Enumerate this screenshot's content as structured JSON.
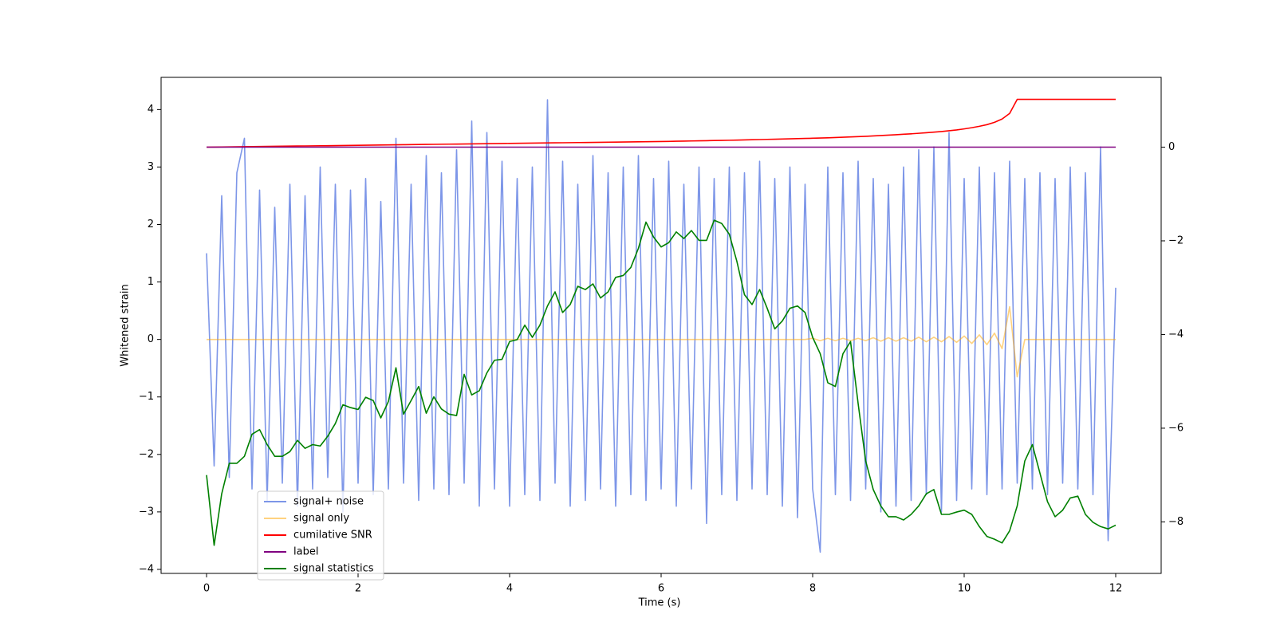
{
  "chart_data": {
    "type": "line",
    "x_label": "Time (s)",
    "y_label": "Whitened strain",
    "x": [
      0,
      0.1,
      0.2,
      0.3,
      0.4,
      0.5,
      0.6,
      0.7,
      0.8,
      0.9,
      1,
      1.1,
      1.2,
      1.3,
      1.4,
      1.5,
      1.6,
      1.7,
      1.8,
      1.9,
      2,
      2.1,
      2.2,
      2.3,
      2.4,
      2.5,
      2.6,
      2.7,
      2.8,
      2.9,
      3,
      3.1,
      3.2,
      3.3,
      3.4,
      3.5,
      3.6,
      3.7,
      3.8,
      3.9,
      4,
      4.1,
      4.2,
      4.3,
      4.4,
      4.5,
      4.6,
      4.7,
      4.8,
      4.9,
      5,
      5.1,
      5.2,
      5.3,
      5.4,
      5.5,
      5.6,
      5.7,
      5.8,
      5.9,
      6,
      6.1,
      6.2,
      6.3,
      6.4,
      6.5,
      6.6,
      6.7,
      6.8,
      6.9,
      7,
      7.1,
      7.2,
      7.3,
      7.4,
      7.5,
      7.6,
      7.7,
      7.8,
      7.9,
      8,
      8.1,
      8.2,
      8.3,
      8.4,
      8.5,
      8.6,
      8.7,
      8.8,
      8.9,
      9,
      9.1,
      9.2,
      9.3,
      9.4,
      9.5,
      9.6,
      9.7,
      9.8,
      9.9,
      10,
      10.1,
      10.2,
      10.3,
      10.4,
      10.5,
      10.6,
      10.7,
      10.8,
      10.9,
      11,
      11.1,
      11.2,
      11.3,
      11.4,
      11.5,
      11.6,
      11.7,
      11.8,
      11.9,
      12
    ],
    "xlim": [
      -0.6,
      12.6
    ],
    "ylim": [
      -4.07,
      4.56
    ],
    "y2lim": [
      -9.1,
      1.49
    ],
    "xticks": [
      0,
      2,
      4,
      6,
      8,
      10,
      12
    ],
    "yticks": [
      {
        "value": -4,
        "label": "−4"
      },
      {
        "value": -3,
        "label": "−3"
      },
      {
        "value": -2,
        "label": "−2"
      },
      {
        "value": -1,
        "label": "−1"
      },
      0,
      1,
      2,
      3,
      4
    ],
    "y2ticks": [
      {
        "value": -8,
        "label": "−8"
      },
      {
        "value": -6,
        "label": "−6"
      },
      {
        "value": -4,
        "label": "−4"
      },
      {
        "value": -2,
        "label": "−2"
      },
      0
    ],
    "legend": "lower left",
    "series": [
      {
        "name": "signal+ noise",
        "color": "#6f8be6",
        "alpha": 0.9,
        "values": [
          1.5,
          -2.2,
          2.5,
          -2.4,
          2.9,
          3.5,
          -2.6,
          2.6,
          -2.8,
          2.3,
          -2.5,
          2.7,
          -2.9,
          2.5,
          -2.6,
          3.0,
          -2.4,
          2.7,
          -3.0,
          2.6,
          -2.5,
          2.8,
          -2.7,
          2.4,
          -2.6,
          3.5,
          -2.5,
          2.7,
          -2.8,
          3.2,
          -2.6,
          2.9,
          -2.7,
          3.3,
          -2.5,
          3.8,
          -2.9,
          3.6,
          -2.6,
          3.1,
          -2.9,
          2.8,
          -2.7,
          3.0,
          -2.8,
          4.17,
          -2.5,
          3.1,
          -2.9,
          2.7,
          -2.8,
          3.2,
          -2.6,
          2.9,
          -2.9,
          3.0,
          -2.7,
          3.2,
          -2.8,
          2.8,
          -2.6,
          3.1,
          -2.9,
          2.7,
          -2.6,
          3.0,
          -3.2,
          2.8,
          -2.7,
          3.0,
          -2.8,
          2.9,
          -2.6,
          3.1,
          -2.7,
          2.8,
          -2.9,
          3.0,
          -3.1,
          2.7,
          -2.6,
          -3.7,
          3.0,
          -2.7,
          2.9,
          -2.8,
          3.1,
          -2.6,
          2.8,
          -3.0,
          2.7,
          -2.9,
          3.0,
          -2.8,
          3.3,
          -2.7,
          3.35,
          -3.0,
          3.6,
          -2.8,
          2.8,
          -2.6,
          3.0,
          -2.7,
          2.9,
          -2.6,
          3.1,
          -2.5,
          2.8,
          -2.6,
          2.9,
          -2.7,
          2.8,
          -2.5,
          3.0,
          -2.6,
          2.9,
          -2.7,
          3.35,
          -3.5,
          0.9
        ]
      },
      {
        "name": "signal only",
        "color": "#ffa500",
        "alpha": 0.5,
        "values": [
          0,
          0,
          0,
          0,
          0,
          0,
          0,
          0,
          0,
          0,
          0,
          0,
          0,
          0,
          0,
          0,
          0,
          0,
          0,
          0,
          0,
          0,
          0,
          0,
          0,
          0,
          0,
          0,
          0,
          0,
          0,
          0,
          0,
          0,
          0,
          0,
          0,
          0,
          0,
          0,
          0,
          0,
          0,
          0,
          0,
          0,
          0,
          0,
          0,
          0,
          0,
          0,
          0,
          0,
          0,
          0,
          0,
          0,
          0,
          0,
          0,
          0,
          0,
          0,
          0,
          0,
          0,
          0,
          0,
          0,
          0,
          0,
          0,
          0,
          0,
          0,
          0,
          0,
          0,
          0,
          0.02,
          -0.02,
          0.02,
          -0.02,
          0.02,
          -0.02,
          0.02,
          -0.02,
          0.03,
          -0.03,
          0.03,
          -0.03,
          0.03,
          -0.03,
          0.04,
          -0.04,
          0.04,
          -0.04,
          0.05,
          -0.05,
          0.06,
          -0.07,
          0.08,
          -0.09,
          0.11,
          -0.16,
          0.57,
          -0.65,
          0,
          0,
          0,
          0,
          0,
          0,
          0,
          0,
          0,
          0,
          0,
          0,
          0
        ]
      },
      {
        "name": "cumilative SNR",
        "color": "#ff0000",
        "alpha": 1,
        "axis": "y2",
        "values": [
          0,
          0.002,
          0.004,
          0.006,
          0.008,
          0.01,
          0.012,
          0.014,
          0.016,
          0.018,
          0.02,
          0.022,
          0.024,
          0.026,
          0.028,
          0.03,
          0.032,
          0.034,
          0.036,
          0.038,
          0.04,
          0.042,
          0.044,
          0.046,
          0.048,
          0.05,
          0.052,
          0.054,
          0.056,
          0.058,
          0.06,
          0.062,
          0.064,
          0.066,
          0.068,
          0.07,
          0.072,
          0.074,
          0.076,
          0.078,
          0.08,
          0.082,
          0.084,
          0.086,
          0.088,
          0.09,
          0.092,
          0.094,
          0.096,
          0.098,
          0.1,
          0.102,
          0.104,
          0.106,
          0.108,
          0.11,
          0.112,
          0.114,
          0.116,
          0.118,
          0.12,
          0.123,
          0.126,
          0.129,
          0.132,
          0.135,
          0.138,
          0.141,
          0.144,
          0.147,
          0.15,
          0.154,
          0.158,
          0.162,
          0.166,
          0.17,
          0.174,
          0.178,
          0.182,
          0.186,
          0.19,
          0.195,
          0.2,
          0.206,
          0.212,
          0.218,
          0.225,
          0.232,
          0.24,
          0.248,
          0.256,
          0.265,
          0.275,
          0.285,
          0.296,
          0.308,
          0.32,
          0.334,
          0.35,
          0.368,
          0.39,
          0.415,
          0.445,
          0.48,
          0.53,
          0.6,
          0.72,
          1.02,
          1.02,
          1.02,
          1.02,
          1.02,
          1.02,
          1.02,
          1.02,
          1.02,
          1.02,
          1.02,
          1.02,
          1.02,
          1.02
        ]
      },
      {
        "name": "label",
        "color": "#800080",
        "alpha": 1,
        "axis": "y2",
        "values": [
          0,
          0,
          0,
          0,
          0,
          0,
          0,
          0,
          0,
          0,
          0,
          0,
          0,
          0,
          0,
          0,
          0,
          0,
          0,
          0,
          0,
          0,
          0,
          0,
          0,
          0,
          0,
          0,
          0,
          0,
          0,
          0,
          0,
          0,
          0,
          0,
          0,
          0,
          0,
          0,
          0,
          0,
          0,
          0,
          0,
          0,
          0,
          0,
          0,
          0,
          0,
          0,
          0,
          0,
          0,
          0,
          0,
          0,
          0,
          0,
          0,
          0,
          0,
          0,
          0,
          0,
          0,
          0,
          0,
          0,
          0,
          0,
          0,
          0,
          0,
          0,
          0,
          0,
          0,
          0,
          0,
          0,
          0,
          0,
          0,
          0,
          0,
          0,
          0,
          0,
          0,
          0,
          0,
          0,
          0,
          0,
          0,
          0,
          0,
          0,
          0,
          0,
          0,
          0,
          0,
          0,
          0,
          0,
          0,
          0,
          0,
          0,
          0,
          0,
          0,
          0,
          0,
          0,
          0,
          0,
          0
        ]
      },
      {
        "name": "signal statistics",
        "color": "#008000",
        "alpha": 1,
        "axis": "y2",
        "values": [
          -7.0,
          -8.5,
          -7.4,
          -6.75,
          -6.75,
          -6.6,
          -6.13,
          -6.03,
          -6.35,
          -6.6,
          -6.6,
          -6.5,
          -6.26,
          -6.43,
          -6.35,
          -6.38,
          -6.17,
          -5.9,
          -5.5,
          -5.56,
          -5.6,
          -5.34,
          -5.41,
          -5.78,
          -5.43,
          -4.71,
          -5.7,
          -5.41,
          -5.11,
          -5.68,
          -5.33,
          -5.59,
          -5.7,
          -5.73,
          -4.85,
          -5.29,
          -5.2,
          -4.82,
          -4.55,
          -4.53,
          -4.15,
          -4.11,
          -3.8,
          -4.06,
          -3.8,
          -3.39,
          -3.09,
          -3.53,
          -3.36,
          -2.97,
          -3.04,
          -2.92,
          -3.22,
          -3.09,
          -2.78,
          -2.74,
          -2.57,
          -2.16,
          -1.6,
          -1.92,
          -2.13,
          -2.04,
          -1.81,
          -1.95,
          -1.78,
          -1.99,
          -1.99,
          -1.56,
          -1.63,
          -1.86,
          -2.44,
          -3.15,
          -3.36,
          -3.04,
          -3.44,
          -3.88,
          -3.71,
          -3.44,
          -3.39,
          -3.53,
          -4.06,
          -4.41,
          -5.03,
          -5.11,
          -4.41,
          -4.15,
          -5.47,
          -6.7,
          -7.31,
          -7.66,
          -7.89,
          -7.89,
          -7.96,
          -7.84,
          -7.66,
          -7.4,
          -7.31,
          -7.84,
          -7.84,
          -7.79,
          -7.75,
          -7.84,
          -8.1,
          -8.31,
          -8.37,
          -8.45,
          -8.19,
          -7.66,
          -6.7,
          -6.35,
          -6.96,
          -7.57,
          -7.89,
          -7.75,
          -7.49,
          -7.45,
          -7.84,
          -8.01,
          -8.1,
          -8.15,
          -8.07
        ]
      }
    ]
  }
}
